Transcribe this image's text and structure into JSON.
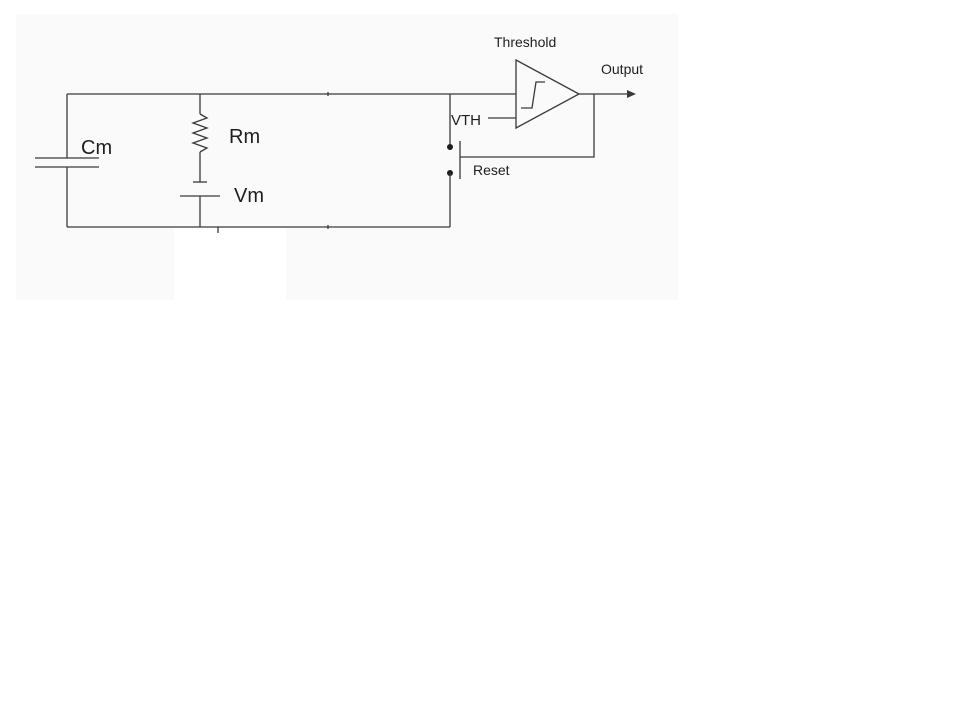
{
  "diagram": {
    "labels": {
      "capacitor": "Cm",
      "resistor": "Rm",
      "voltage_source": "Vm",
      "threshold_voltage": "VTH",
      "comparator": "Threshold",
      "output": "Output",
      "reset": "Reset"
    },
    "components": {
      "capacitor": "capacitor-icon",
      "resistor": "resistor-icon",
      "voltage_source": "battery-icon",
      "comparator": "comparator-icon",
      "reset_switch": "switch-icon"
    },
    "colors": {
      "canvas": "#fafafa",
      "wire": "#3a3a3a",
      "text": "#1e1e1e"
    }
  }
}
